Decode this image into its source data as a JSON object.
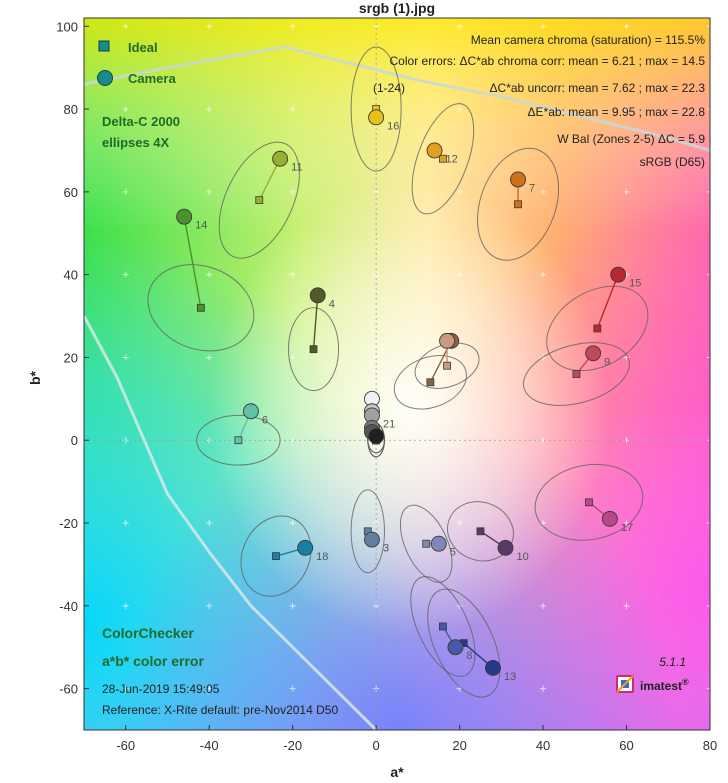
{
  "window": {
    "title": "srgb (1).jpg"
  },
  "chart_data": {
    "type": "scatter",
    "title": "srgb (1).jpg",
    "xlabel": "a*",
    "ylabel": "b*",
    "xlim": [
      -70,
      80
    ],
    "ylim": [
      -70,
      102
    ],
    "xticks": [
      -60,
      -40,
      -20,
      0,
      20,
      40,
      60,
      80
    ],
    "yticks": [
      100,
      80,
      60,
      40,
      20,
      0,
      -20,
      -40,
      -60
    ],
    "legend": {
      "placement": "top-left",
      "entries": [
        {
          "name": "Ideal",
          "marker": "square",
          "color": "#1a8a8a"
        },
        {
          "name": "Camera",
          "marker": "circle",
          "color": "#1a8a8a"
        }
      ]
    },
    "stats": {
      "chroma_line": "Mean camera chroma (saturation) = 115.5%",
      "corr_line": "Color errors:  ΔC*ab chroma corr:  mean = 6.21 ;  max = 14.5",
      "range_note": "(1-24)",
      "uncorr_line": "ΔC*ab uncorr:  mean = 7.62 ;  max = 22.3",
      "de_line": "ΔE*ab:  mean = 9.95 ;  max = 22.8",
      "wbal_line": "W Bal (Zones 2-5) ΔC = 5.9",
      "colorspace": "sRGB (D65)"
    },
    "delta_note": {
      "line1": "Delta-C 2000",
      "line2": "ellipses 4X"
    },
    "bottom_notes": {
      "chart_name": "ColorChecker",
      "chart_kind": "a*b* color error",
      "date": "28-Jun-2019 15:49:05",
      "reference": "Reference: X-Rite default:  pre-Nov2014  D50"
    },
    "brand": {
      "version": "5.1.1",
      "name": "imatest",
      "mark": "®"
    },
    "gamut_boundary": [
      [
        -70,
        86
      ],
      [
        -50,
        90
      ],
      [
        -22,
        95
      ],
      [
        -10,
        92
      ],
      [
        10,
        87
      ],
      [
        30,
        83
      ],
      [
        50,
        78
      ],
      [
        70,
        73
      ],
      [
        80,
        70
      ]
    ],
    "gamut_boundary_lower": [
      [
        -70,
        30
      ],
      [
        -62,
        15
      ],
      [
        -50,
        -13
      ],
      [
        -40,
        -27
      ],
      [
        -30,
        -40
      ],
      [
        -20,
        -50
      ],
      [
        -10,
        -60
      ],
      [
        0,
        -70
      ]
    ],
    "patches": [
      {
        "id": "1",
        "label": "",
        "ideal": [
          13,
          14
        ],
        "camera": [
          18,
          24
        ],
        "color": "#8a6048",
        "ideal_color": "#8a6048",
        "ellipse": {
          "rx": 6,
          "ry": 9,
          "angle": 70
        }
      },
      {
        "id": "2",
        "label": "",
        "ideal": [
          17,
          18
        ],
        "camera": [
          17,
          24
        ],
        "color": "#c99a80",
        "ideal_color": "#c99a80",
        "ellipse": {
          "rx": 5,
          "ry": 8,
          "angle": 70
        }
      },
      {
        "id": "3",
        "label": "3",
        "ideal": [
          -2,
          -22
        ],
        "camera": [
          -1,
          -24
        ],
        "color": "#6080a0",
        "ideal_color": "#6080a0",
        "ellipse": {
          "rx": 4,
          "ry": 10,
          "angle": 0
        }
      },
      {
        "id": "4",
        "label": "4",
        "ideal": [
          -15,
          22
        ],
        "camera": [
          -14,
          35
        ],
        "color": "#505a28",
        "ideal_color": "#505a28",
        "ellipse": {
          "rx": 6,
          "ry": 10,
          "angle": 0
        }
      },
      {
        "id": "5",
        "label": "5",
        "ideal": [
          12,
          -25
        ],
        "camera": [
          15,
          -25
        ],
        "color": "#8088b8",
        "ideal_color": "#8088b8",
        "ellipse": {
          "rx": 5,
          "ry": 10,
          "angle": -25
        }
      },
      {
        "id": "6",
        "label": "6",
        "ideal": [
          -33,
          0
        ],
        "camera": [
          -30,
          7
        ],
        "color": "#60c0a8",
        "ideal_color": "#60c0a8",
        "ellipse": {
          "rx": 10,
          "ry": 6,
          "angle": 0
        }
      },
      {
        "id": "7",
        "label": "7",
        "ideal": [
          34,
          57
        ],
        "camera": [
          34,
          63
        ],
        "color": "#d07018",
        "ideal_color": "#d07018",
        "ellipse": {
          "rx": 9,
          "ry": 14,
          "angle": 20
        }
      },
      {
        "id": "8",
        "label": "8",
        "ideal": [
          16,
          -45
        ],
        "camera": [
          19,
          -50
        ],
        "color": "#4858a8",
        "ideal_color": "#4858a8",
        "ellipse": {
          "rx": 6,
          "ry": 13,
          "angle": -25
        }
      },
      {
        "id": "9",
        "label": "9",
        "ideal": [
          48,
          16
        ],
        "camera": [
          52,
          21
        ],
        "color": "#c04858",
        "ideal_color": "#c04858",
        "ellipse": {
          "rx": 13,
          "ry": 7,
          "angle": -15
        }
      },
      {
        "id": "10",
        "label": "10",
        "ideal": [
          25,
          -22
        ],
        "camera": [
          31,
          -26
        ],
        "color": "#5a3868",
        "ideal_color": "#5a3868",
        "ellipse": {
          "rx": 8,
          "ry": 7,
          "angle": 20
        }
      },
      {
        "id": "11",
        "label": "11",
        "ideal": [
          -28,
          58
        ],
        "camera": [
          -23,
          68
        ],
        "color": "#98b030",
        "ideal_color": "#98b030",
        "ellipse": {
          "rx": 8,
          "ry": 15,
          "angle": 25
        }
      },
      {
        "id": "12",
        "label": "12",
        "ideal": [
          16,
          68
        ],
        "camera": [
          14,
          70
        ],
        "color": "#e0a020",
        "ideal_color": "#e0a020",
        "ellipse": {
          "rx": 6,
          "ry": 14,
          "angle": 20
        }
      },
      {
        "id": "13",
        "label": "13",
        "ideal": [
          21,
          -49
        ],
        "camera": [
          28,
          -55
        ],
        "color": "#283888",
        "ideal_color": "#283888",
        "ellipse": {
          "rx": 7,
          "ry": 14,
          "angle": -25
        }
      },
      {
        "id": "14",
        "label": "14",
        "ideal": [
          -42,
          32
        ],
        "camera": [
          -46,
          54
        ],
        "color": "#4c9030",
        "ideal_color": "#4c9030",
        "ellipse": {
          "rx": 13,
          "ry": 10,
          "angle": 20
        }
      },
      {
        "id": "15",
        "label": "15",
        "ideal": [
          53,
          27
        ],
        "camera": [
          58,
          40
        ],
        "color": "#b82830",
        "ideal_color": "#b82830",
        "ellipse": {
          "rx": 13,
          "ry": 9,
          "angle": -30
        }
      },
      {
        "id": "16",
        "label": "16",
        "ideal": [
          0,
          80
        ],
        "camera": [
          0,
          78
        ],
        "color": "#e8c018",
        "ideal_color": "#e8c018",
        "ellipse": {
          "rx": 6,
          "ry": 15,
          "angle": 0
        }
      },
      {
        "id": "17",
        "label": "17",
        "ideal": [
          51,
          -15
        ],
        "camera": [
          56,
          -19
        ],
        "color": "#b84888",
        "ideal_color": "#b84888",
        "ellipse": {
          "rx": 13,
          "ry": 9,
          "angle": -10
        }
      },
      {
        "id": "18",
        "label": "18",
        "ideal": [
          -24,
          -28
        ],
        "camera": [
          -17,
          -26
        ],
        "color": "#1880a8",
        "ideal_color": "#1880a8",
        "ellipse": {
          "rx": 8,
          "ry": 10,
          "angle": 25
        }
      },
      {
        "id": "19",
        "label": "",
        "ideal": [
          0,
          0
        ],
        "camera": [
          -1,
          10
        ],
        "color": "#f2f2f2",
        "ideal_color": "#f2f2f2",
        "ellipse": {
          "rx": 2,
          "ry": 3,
          "angle": 0
        }
      },
      {
        "id": "20",
        "label": "",
        "ideal": [
          0,
          0
        ],
        "camera": [
          -1,
          7
        ],
        "color": "#c8c8c8",
        "ideal_color": "#c8c8c8",
        "ellipse": {
          "rx": 2,
          "ry": 3,
          "angle": 0
        }
      },
      {
        "id": "21",
        "label": "21",
        "ideal": [
          0,
          0
        ],
        "camera": [
          -1,
          6
        ],
        "color": "#a0a0a0",
        "ideal_color": "#a0a0a0",
        "ellipse": {
          "rx": 2,
          "ry": 4,
          "angle": 0
        }
      },
      {
        "id": "22",
        "label": "",
        "ideal": [
          0,
          0
        ],
        "camera": [
          -1,
          3
        ],
        "color": "#7a7a7a",
        "ideal_color": "#7a7a7a",
        "ellipse": {
          "rx": 2,
          "ry": 4,
          "angle": 0
        }
      },
      {
        "id": "23",
        "label": "",
        "ideal": [
          0,
          0
        ],
        "camera": [
          -1,
          2
        ],
        "color": "#555555",
        "ideal_color": "#555555",
        "ellipse": {
          "rx": 2,
          "ry": 4,
          "angle": 0
        }
      },
      {
        "id": "24",
        "label": "",
        "ideal": [
          0,
          0
        ],
        "camera": [
          0,
          1
        ],
        "color": "#202020",
        "ideal_color": "#202020",
        "ellipse": {
          "rx": 2,
          "ry": 3,
          "angle": 0
        }
      }
    ]
  }
}
